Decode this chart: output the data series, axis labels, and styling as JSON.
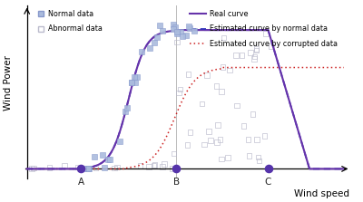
{
  "xlabel": "Wind speed",
  "ylabel": "Wind Power",
  "bg_color": "#ffffff",
  "point_A": 0.17,
  "point_B": 0.47,
  "point_C": 0.76,
  "real_curve_color": "#6633aa",
  "estimated_normal_color": "#3333bb",
  "estimated_corrupted_color": "#cc2222",
  "normal_scatter_color": "#aabbdd",
  "normal_scatter_edge": "#8899cc",
  "abnormal_scatter_edge": "#bbbbcc",
  "dot_color": "#5533aa",
  "legend_normal": "Normal data",
  "legend_abnormal": "Abnormal data",
  "legend_real": "Real curve",
  "legend_est_normal": "Estimated curve by normal data",
  "legend_est_corrupted": "Estimated curve by corrupted data",
  "label_A": "A",
  "label_B": "B",
  "label_C": "C",
  "vline_color": "#bbbbbb",
  "corrupted_plateau": 0.73,
  "corrupted_shift": 0.145
}
